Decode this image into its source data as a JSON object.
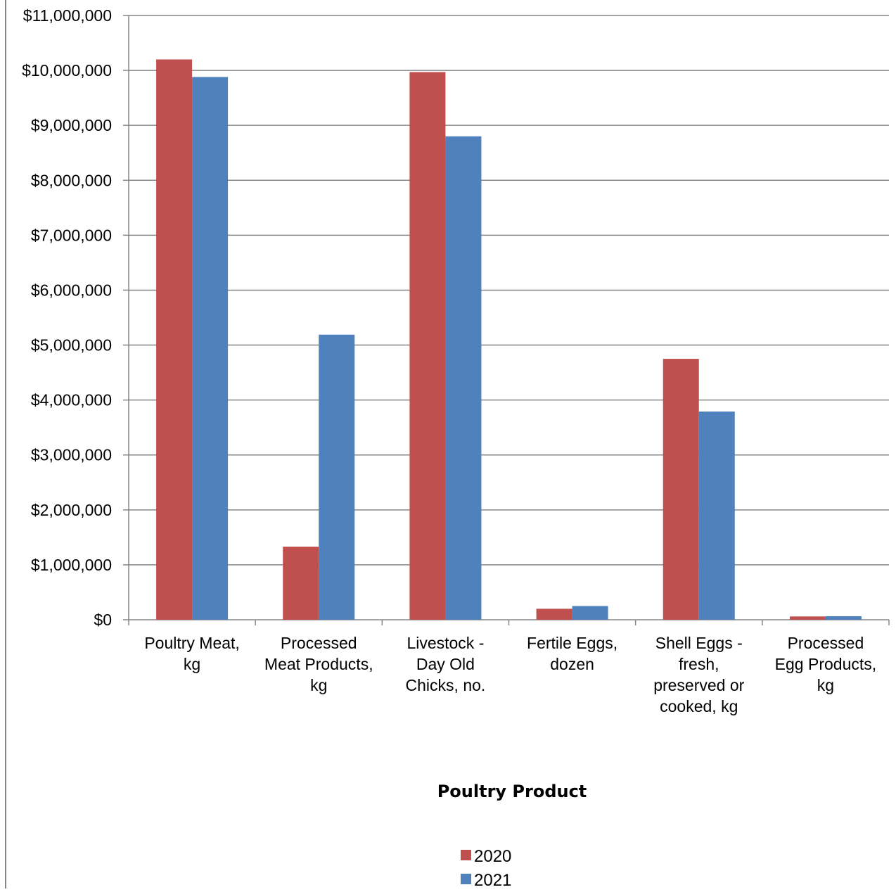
{
  "chart_data": {
    "type": "bar",
    "categories": [
      [
        "Poultry Meat,",
        "kg"
      ],
      [
        "Processed",
        "Meat Products,",
        "kg"
      ],
      [
        "Livestock -",
        "Day Old",
        "Chicks, no."
      ],
      [
        "Fertile Eggs,",
        "dozen"
      ],
      [
        "Shell Eggs -",
        "fresh,",
        "preserved or",
        "cooked, kg"
      ],
      [
        "Processed",
        "Egg Products,",
        "kg"
      ]
    ],
    "series": [
      {
        "name": "2020",
        "color": "#C0504D",
        "values": [
          10200000,
          1330000,
          9970000,
          200000,
          4750000,
          60000
        ]
      },
      {
        "name": "2021",
        "color": "#4F81BD",
        "values": [
          9880000,
          5190000,
          8800000,
          250000,
          3790000,
          65000
        ]
      }
    ],
    "title": "",
    "xlabel": "Poultry Product",
    "ylabel": "",
    "ylim": [
      0,
      11000000
    ],
    "yticks": [
      "$0",
      "$1,000,000",
      "$2,000,000",
      "$3,000,000",
      "$4,000,000",
      "$5,000,000",
      "$6,000,000",
      "$7,000,000",
      "$8,000,000",
      "$9,000,000",
      "$10,000,000",
      "$11,000,000"
    ],
    "grid": true,
    "legend_position": "bottom"
  }
}
